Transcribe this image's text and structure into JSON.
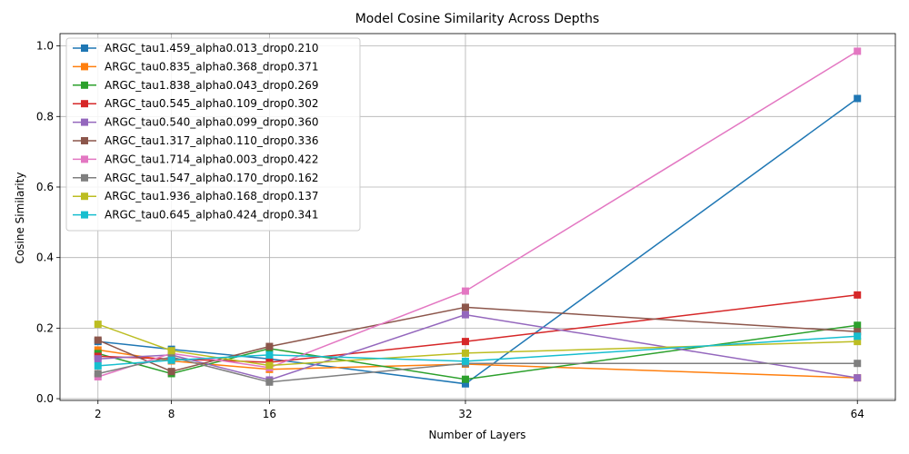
{
  "chart_data": {
    "type": "line",
    "title": "Model Cosine Similarity Across Depths",
    "xlabel": "Number of Layers",
    "ylabel": "Cosine Similarity",
    "x": [
      2,
      8,
      16,
      32,
      64
    ],
    "xticks": [
      "2",
      "8",
      "16",
      "32",
      "64"
    ],
    "xlim": [
      -1.1,
      67.1
    ],
    "ylim": [
      -0.005,
      1.035
    ],
    "yticks": [
      "0.0",
      "0.2",
      "0.4",
      "0.6",
      "0.8",
      "1.0"
    ],
    "ytick_values": [
      0.0,
      0.2,
      0.4,
      0.6,
      0.8,
      1.0
    ],
    "grid": true,
    "legend_position": "upper-left",
    "marker": "square",
    "series": [
      {
        "name": "ARGC_tau1.459_alpha0.013_drop0.210",
        "color": "#1f77b4",
        "values": [
          0.162,
          0.14,
          0.113,
          0.042,
          0.851
        ]
      },
      {
        "name": "ARGC_tau0.835_alpha0.368_drop0.371",
        "color": "#ff7f0e",
        "values": [
          0.138,
          0.107,
          0.083,
          0.098,
          0.059
        ]
      },
      {
        "name": "ARGC_tau1.838_alpha0.043_drop0.269",
        "color": "#2ca02c",
        "values": [
          0.128,
          0.071,
          0.142,
          0.055,
          0.208
        ]
      },
      {
        "name": "ARGC_tau0.545_alpha0.109_drop0.302",
        "color": "#d62728",
        "values": [
          0.12,
          0.113,
          0.103,
          0.162,
          0.294
        ]
      },
      {
        "name": "ARGC_tau0.540_alpha0.099_drop0.360",
        "color": "#9467bd",
        "values": [
          0.113,
          0.124,
          0.053,
          0.238,
          0.059
        ]
      },
      {
        "name": "ARGC_tau1.317_alpha0.110_drop0.336",
        "color": "#8c564b",
        "values": [
          0.166,
          0.077,
          0.148,
          0.259,
          0.19
        ]
      },
      {
        "name": "ARGC_tau1.714_alpha0.003_drop0.422",
        "color": "#e377c2",
        "values": [
          0.062,
          0.128,
          0.088,
          0.305,
          0.985
        ]
      },
      {
        "name": "ARGC_tau1.547_alpha0.170_drop0.162",
        "color": "#7f7f7f",
        "values": [
          0.071,
          0.118,
          0.047,
          0.1,
          0.1
        ]
      },
      {
        "name": "ARGC_tau1.936_alpha0.168_drop0.137",
        "color": "#bcbd22",
        "values": [
          0.211,
          0.136,
          0.094,
          0.129,
          0.162
        ]
      },
      {
        "name": "ARGC_tau0.645_alpha0.424_drop0.341",
        "color": "#17becf",
        "values": [
          0.093,
          0.109,
          0.124,
          0.106,
          0.177
        ]
      }
    ]
  }
}
